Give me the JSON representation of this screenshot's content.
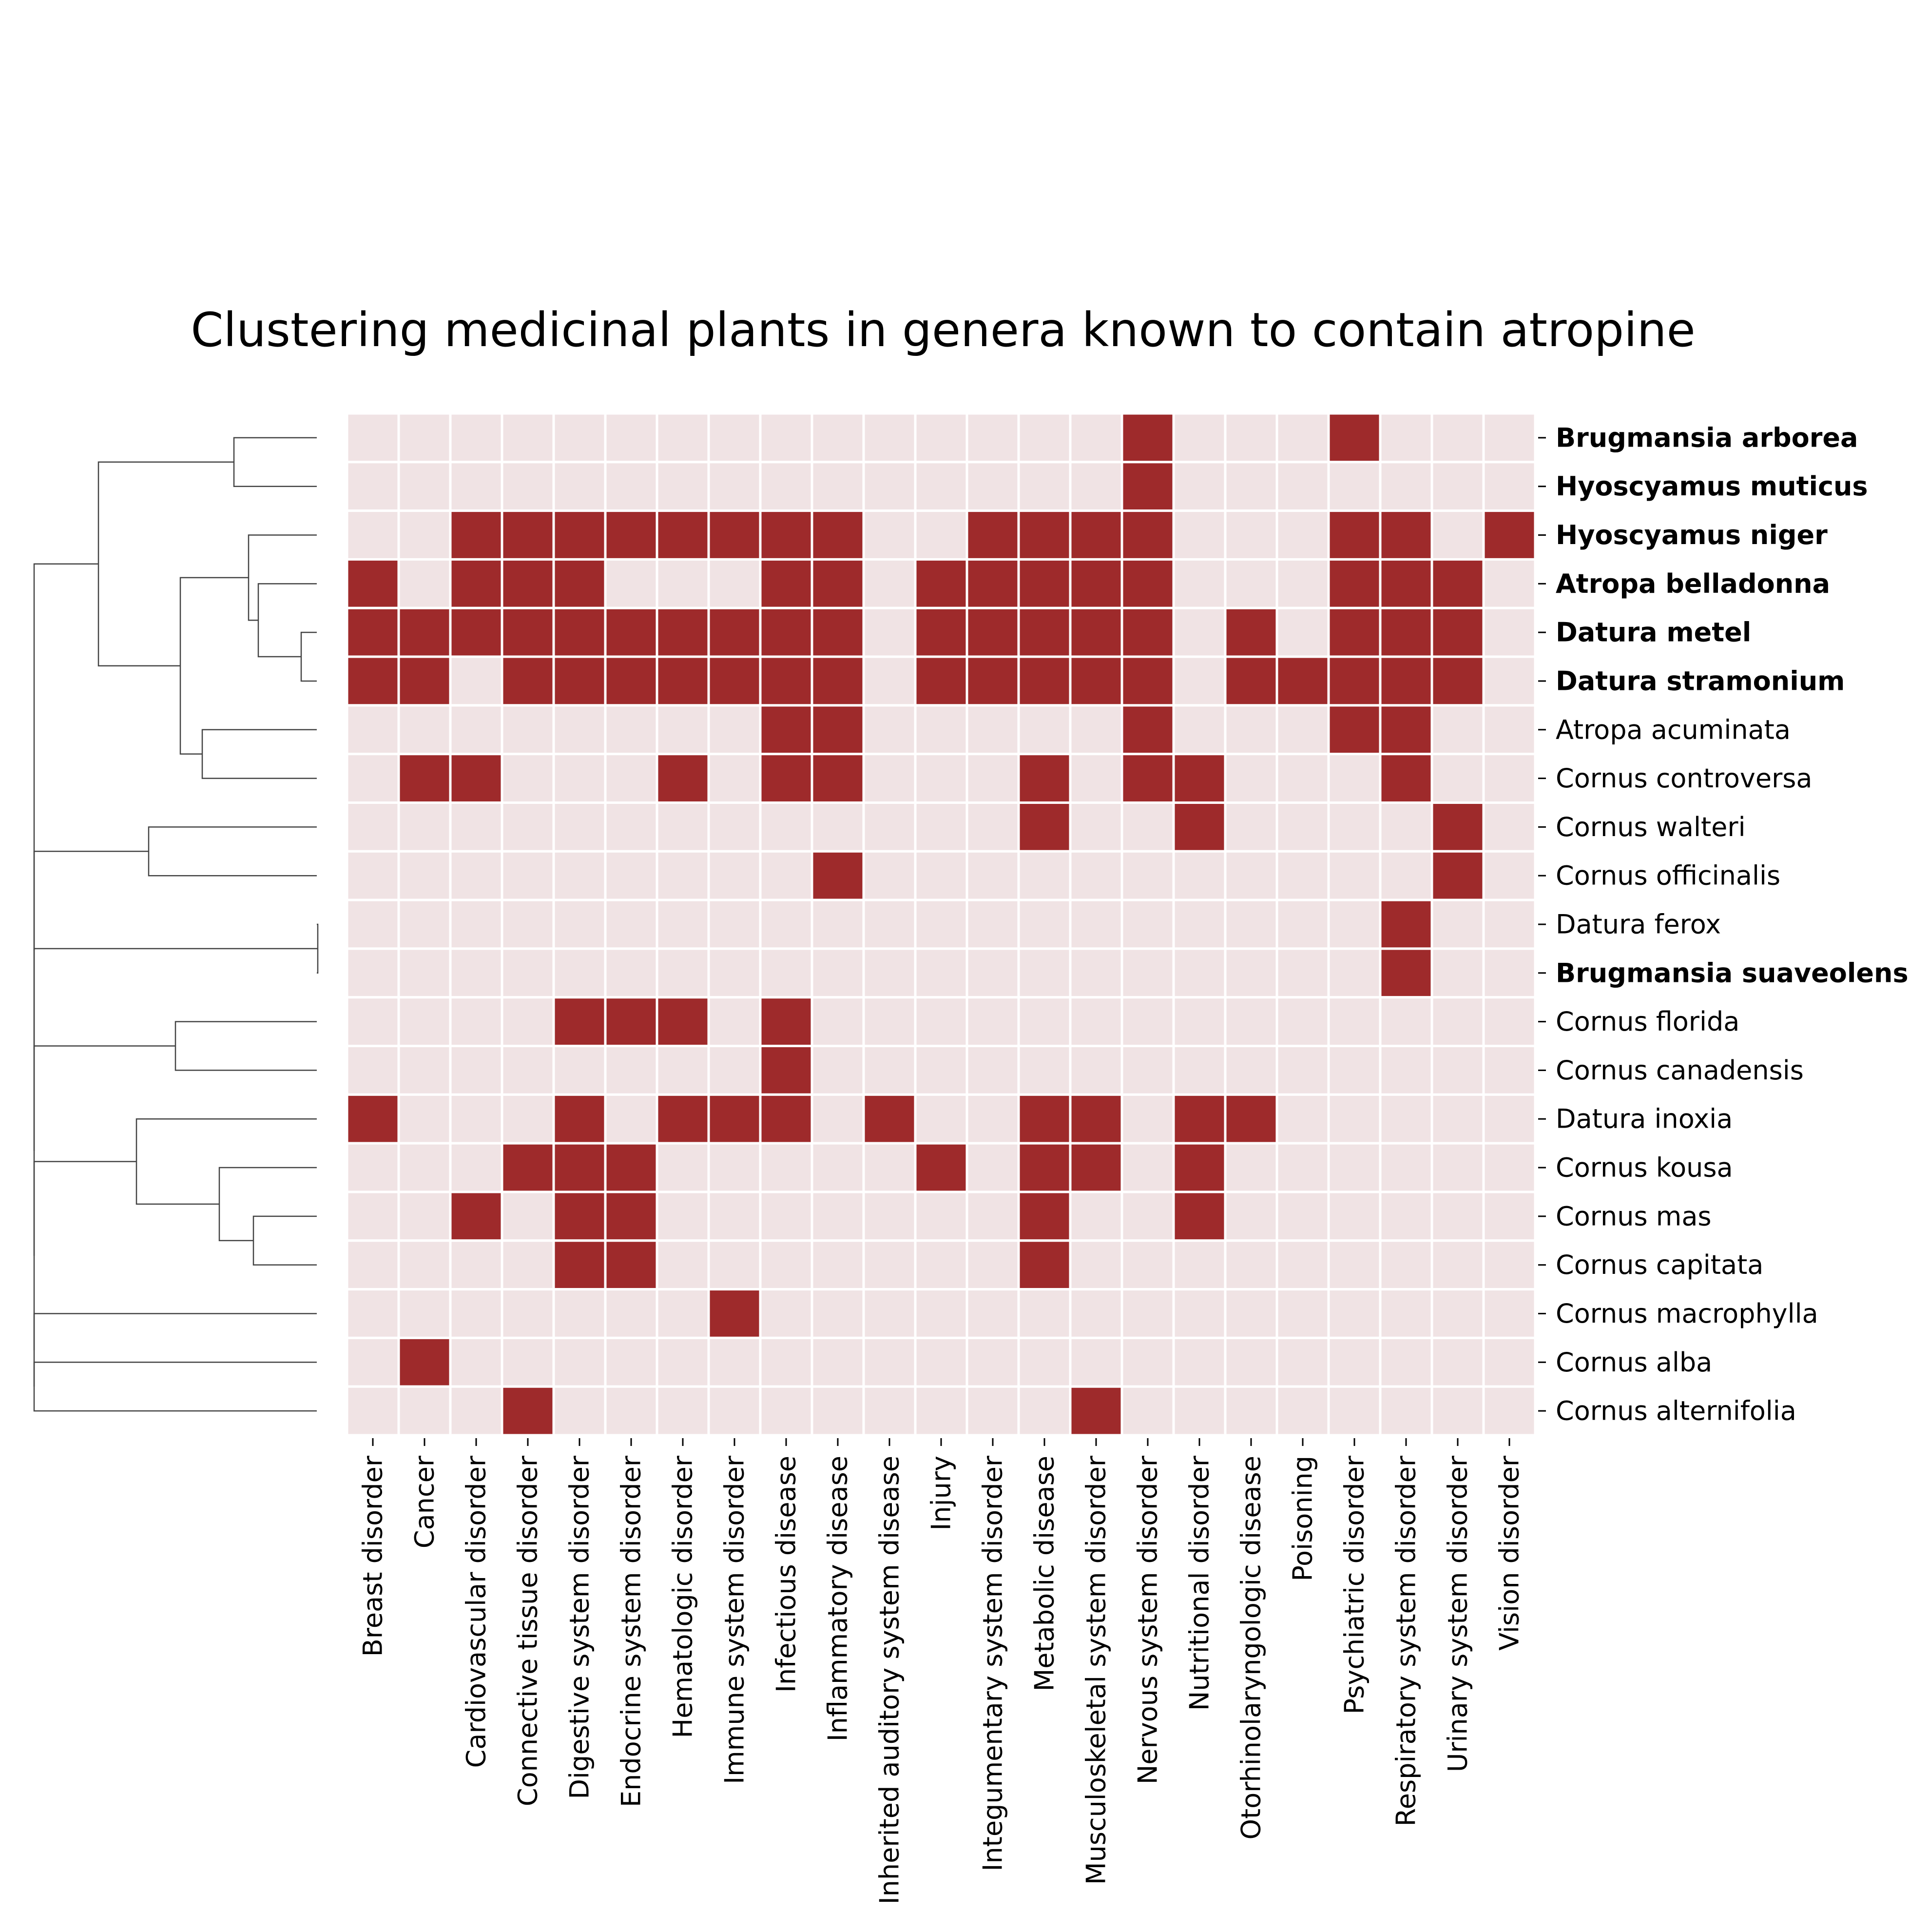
{
  "colors": {
    "present": "#9e2a2b",
    "absent": "#f0e3e4",
    "grid": "#ffffff"
  },
  "chart_data": {
    "type": "heatmap",
    "title": "Clustering medicinal plants in genera known to contain atropine",
    "legend": "none",
    "columns": [
      "Breast disorder",
      "Cancer",
      "Cardiovascular disorder",
      "Connective tissue disorder",
      "Digestive system disorder",
      "Endocrine system disorder",
      "Hematologic disorder",
      "Immune system disorder",
      "Infectious disease",
      "Inflammatory disease",
      "Inherited auditory system disease",
      "Injury",
      "Integumentary system disorder",
      "Metabolic disease",
      "Musculoskeletal system disorder",
      "Nervous system disorder",
      "Nutritional disorder",
      "Otorhinolaryngologic disease",
      "Poisoning",
      "Psychiatric disorder",
      "Respiratory system disorder",
      "Urinary system disorder",
      "Vision disorder"
    ],
    "rows": [
      {
        "name": "Brugmansia arborea",
        "bold": true,
        "values": [
          0,
          0,
          0,
          0,
          0,
          0,
          0,
          0,
          0,
          0,
          0,
          0,
          0,
          0,
          0,
          1,
          0,
          0,
          0,
          1,
          0,
          0,
          0
        ]
      },
      {
        "name": "Hyoscyamus muticus",
        "bold": true,
        "values": [
          0,
          0,
          0,
          0,
          0,
          0,
          0,
          0,
          0,
          0,
          0,
          0,
          0,
          0,
          0,
          1,
          0,
          0,
          0,
          0,
          0,
          0,
          0
        ]
      },
      {
        "name": "Hyoscyamus niger",
        "bold": true,
        "values": [
          0,
          0,
          1,
          1,
          1,
          1,
          1,
          1,
          1,
          1,
          0,
          0,
          1,
          1,
          1,
          1,
          0,
          0,
          0,
          1,
          1,
          0,
          1
        ]
      },
      {
        "name": "Atropa belladonna",
        "bold": true,
        "values": [
          1,
          0,
          1,
          1,
          1,
          0,
          0,
          0,
          1,
          1,
          0,
          1,
          1,
          1,
          1,
          1,
          0,
          0,
          0,
          1,
          1,
          1,
          0
        ]
      },
      {
        "name": "Datura metel",
        "bold": true,
        "values": [
          1,
          1,
          1,
          1,
          1,
          1,
          1,
          1,
          1,
          1,
          0,
          1,
          1,
          1,
          1,
          1,
          0,
          1,
          0,
          1,
          1,
          1,
          0
        ]
      },
      {
        "name": "Datura stramonium",
        "bold": true,
        "values": [
          1,
          1,
          0,
          1,
          1,
          1,
          1,
          1,
          1,
          1,
          0,
          1,
          1,
          1,
          1,
          1,
          0,
          1,
          1,
          1,
          1,
          1,
          0
        ]
      },
      {
        "name": "Atropa acuminata",
        "bold": false,
        "values": [
          0,
          0,
          0,
          0,
          0,
          0,
          0,
          0,
          1,
          1,
          0,
          0,
          0,
          0,
          0,
          1,
          0,
          0,
          0,
          1,
          1,
          0,
          0
        ]
      },
      {
        "name": "Cornus controversa",
        "bold": false,
        "values": [
          0,
          1,
          1,
          0,
          0,
          0,
          1,
          0,
          1,
          1,
          0,
          0,
          0,
          1,
          0,
          1,
          1,
          0,
          0,
          0,
          1,
          0,
          0
        ]
      },
      {
        "name": "Cornus walteri",
        "bold": false,
        "values": [
          0,
          0,
          0,
          0,
          0,
          0,
          0,
          0,
          0,
          0,
          0,
          0,
          0,
          1,
          0,
          0,
          1,
          0,
          0,
          0,
          0,
          1,
          0
        ]
      },
      {
        "name": "Cornus officinalis",
        "bold": false,
        "values": [
          0,
          0,
          0,
          0,
          0,
          0,
          0,
          0,
          0,
          1,
          0,
          0,
          0,
          0,
          0,
          0,
          0,
          0,
          0,
          0,
          0,
          1,
          0
        ]
      },
      {
        "name": "Datura ferox",
        "bold": false,
        "values": [
          0,
          0,
          0,
          0,
          0,
          0,
          0,
          0,
          0,
          0,
          0,
          0,
          0,
          0,
          0,
          0,
          0,
          0,
          0,
          0,
          1,
          0,
          0
        ]
      },
      {
        "name": "Brugmansia suaveolens",
        "bold": true,
        "values": [
          0,
          0,
          0,
          0,
          0,
          0,
          0,
          0,
          0,
          0,
          0,
          0,
          0,
          0,
          0,
          0,
          0,
          0,
          0,
          0,
          1,
          0,
          0
        ]
      },
      {
        "name": "Cornus florida",
        "bold": false,
        "values": [
          0,
          0,
          0,
          0,
          1,
          1,
          1,
          0,
          1,
          0,
          0,
          0,
          0,
          0,
          0,
          0,
          0,
          0,
          0,
          0,
          0,
          0,
          0
        ]
      },
      {
        "name": "Cornus canadensis",
        "bold": false,
        "values": [
          0,
          0,
          0,
          0,
          0,
          0,
          0,
          0,
          1,
          0,
          0,
          0,
          0,
          0,
          0,
          0,
          0,
          0,
          0,
          0,
          0,
          0,
          0
        ]
      },
      {
        "name": "Datura inoxia",
        "bold": false,
        "values": [
          1,
          0,
          0,
          0,
          1,
          0,
          1,
          1,
          1,
          0,
          1,
          0,
          0,
          1,
          1,
          0,
          1,
          1,
          0,
          0,
          0,
          0,
          0
        ]
      },
      {
        "name": "Cornus kousa",
        "bold": false,
        "values": [
          0,
          0,
          0,
          1,
          1,
          1,
          0,
          0,
          0,
          0,
          0,
          1,
          0,
          1,
          1,
          0,
          1,
          0,
          0,
          0,
          0,
          0,
          0
        ]
      },
      {
        "name": "Cornus mas",
        "bold": false,
        "values": [
          0,
          0,
          1,
          0,
          1,
          1,
          0,
          0,
          0,
          0,
          0,
          0,
          0,
          1,
          0,
          0,
          1,
          0,
          0,
          0,
          0,
          0,
          0
        ]
      },
      {
        "name": "Cornus capitata",
        "bold": false,
        "values": [
          0,
          0,
          0,
          0,
          1,
          1,
          0,
          0,
          0,
          0,
          0,
          0,
          0,
          1,
          0,
          0,
          0,
          0,
          0,
          0,
          0,
          0,
          0
        ]
      },
      {
        "name": "Cornus macrophylla",
        "bold": false,
        "values": [
          0,
          0,
          0,
          0,
          0,
          0,
          0,
          1,
          0,
          0,
          0,
          0,
          0,
          0,
          0,
          0,
          0,
          0,
          0,
          0,
          0,
          0,
          0
        ]
      },
      {
        "name": "Cornus alba",
        "bold": false,
        "values": [
          0,
          1,
          0,
          0,
          0,
          0,
          0,
          0,
          0,
          0,
          0,
          0,
          0,
          0,
          0,
          0,
          0,
          0,
          0,
          0,
          0,
          0,
          0
        ]
      },
      {
        "name": "Cornus alternifolia",
        "bold": false,
        "values": [
          0,
          0,
          0,
          1,
          0,
          0,
          0,
          0,
          0,
          0,
          0,
          0,
          0,
          0,
          1,
          0,
          0,
          0,
          0,
          0,
          0,
          0,
          0
        ]
      }
    ]
  }
}
